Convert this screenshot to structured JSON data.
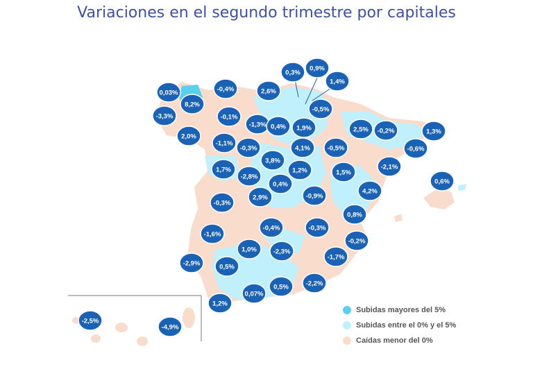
{
  "title": "Variaciones en el segundo trimestre por capitales",
  "colors": {
    "strong_rise": "#5bcfee",
    "rise": "#bff0fb",
    "fall": "#f9dccb",
    "badge": "#1a62b6",
    "badge_border": "#ffffff"
  },
  "legend": [
    {
      "label": "Subidas mayores del 5%",
      "color": "#5bcfee"
    },
    {
      "label": "Subidas entre el 0% y el 5%",
      "color": "#bff0fb"
    },
    {
      "label": "Caídas menor del 0%",
      "color": "#f9dccb"
    }
  ],
  "labels": [
    "0,03%",
    "8,2%",
    "-3,3%",
    "2,0%",
    "-0,4%",
    "2,6%",
    "0,3%",
    "0,9%",
    "1,4%",
    "-0,5%",
    "-0,1%",
    "-1,3%",
    "0,4%",
    "1,9%",
    "2,5%",
    "-0,2%",
    "1,3%",
    "-1,1%",
    "-0,3%",
    "4,1%",
    "-0,5%",
    "-0,6%",
    "3,8%",
    "1,7%",
    "-2,8%",
    "1,2%",
    "1,5%",
    "-2,1%",
    "0,4%",
    "0,6%",
    "2,9%",
    "-0,9%",
    "4,2%",
    "-0,3%",
    "0,8%",
    "-1,6%",
    "-0,4%",
    "-0,3%",
    "-0,2%",
    "1,0%",
    "-2,3%",
    "-2,9%",
    "0,5%",
    "-1,7%",
    "0,5%",
    "0,07%",
    "-2,2%",
    "1,2%",
    "-2,5%",
    "-4,9%"
  ]
}
